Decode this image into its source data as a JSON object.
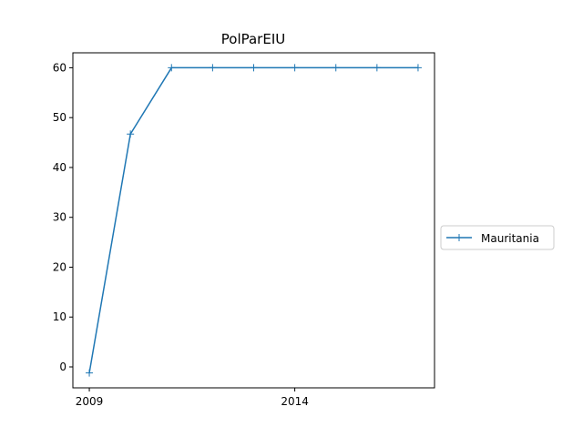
{
  "chart_data": {
    "type": "line",
    "title": "PolParEIU",
    "xlabel": "",
    "ylabel": "",
    "x": [
      2009,
      2010,
      2011,
      2012,
      2013,
      2014,
      2015,
      2016,
      2017
    ],
    "series": [
      {
        "name": "Mauritania",
        "values": [
          -1.2,
          46.7,
          60,
          60,
          60,
          60,
          60,
          60,
          60
        ],
        "color": "#1f77b4",
        "marker": "+"
      }
    ],
    "xticks": [
      2009,
      2014
    ],
    "xtick_labels": [
      "2009",
      "2014"
    ],
    "yticks": [
      0,
      10,
      20,
      30,
      40,
      50,
      60
    ],
    "ytick_labels": [
      "0",
      "10",
      "20",
      "30",
      "40",
      "50",
      "60"
    ],
    "xlim": [
      2008.6,
      2017.4
    ],
    "ylim": [
      -4.2,
      63.0
    ],
    "grid": false,
    "legend_position": "right"
  }
}
